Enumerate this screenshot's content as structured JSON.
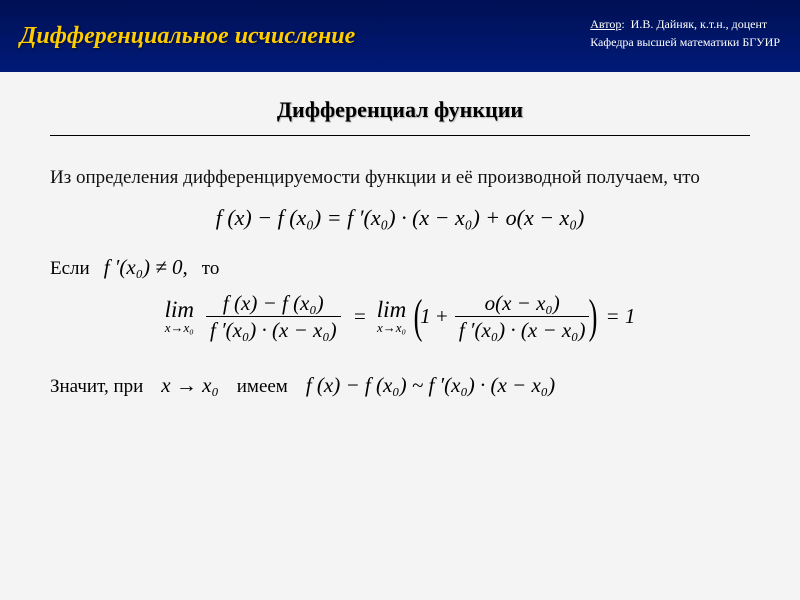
{
  "header": {
    "title": "Дифференциальное исчисление",
    "author_label": "Автор",
    "author_name": "И.В. Дайняк, к.т.н., доцент",
    "department": "Кафедра высшей математики БГУИР",
    "bg_color": "#001a66",
    "title_color": "#ffcc00"
  },
  "subtitle": "Дифференциал функции",
  "intro": "Из определения дифференцируемости функции и её производной получаем, что",
  "formula1": "f (x) − f (x₀) = f ′(x₀) · (x − x₀) + o(x − x₀)",
  "cond": {
    "word_if": "Если",
    "expr": "f ′(x₀) ≠ 0,",
    "word_then": "то"
  },
  "limit_formula": {
    "lim_word": "lim",
    "lim_sub": "x→x₀",
    "frac1_num": "f (x) − f (x₀)",
    "frac1_den": "f ′(x₀) · (x − x₀)",
    "eq1": "=",
    "one": "1",
    "plus": "+",
    "frac2_num": "o(x − x₀)",
    "frac2_den": "f ′(x₀) · (x − x₀)",
    "eq2": "= 1"
  },
  "conclusion": {
    "word1": "Значит, при",
    "expr1": "x → x₀",
    "word2": "имеем",
    "expr2": "f (x) − f (x₀) ~ f ′(x₀) · (x − x₀)"
  },
  "style": {
    "body_bg": "#f4f4f4",
    "text_color": "#111111",
    "divider_color": "#000000",
    "title_fontsize_pt": 24,
    "subtitle_fontsize_pt": 22,
    "body_fontsize_pt": 19,
    "formula_fontsize_pt": 22
  }
}
